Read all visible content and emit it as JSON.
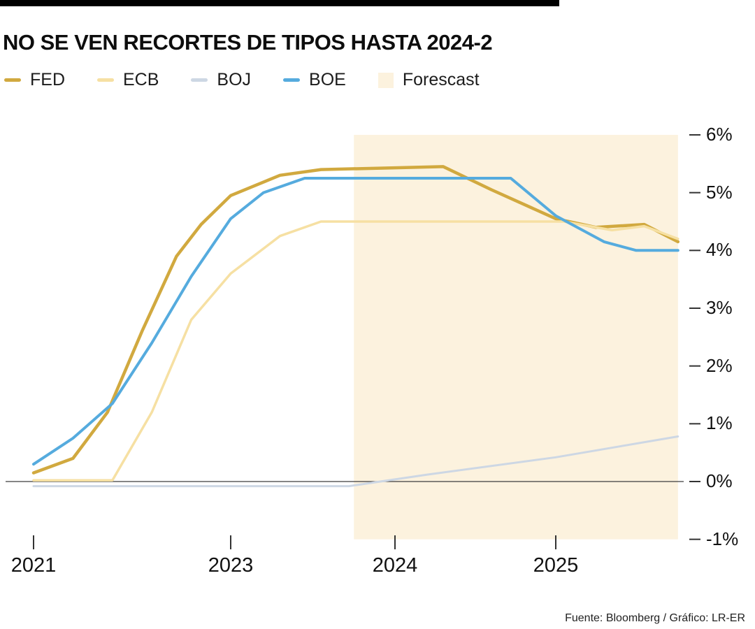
{
  "header": {
    "title": "NO SE VEN RECORTES DE TIPOS HASTA 2024-2"
  },
  "legend": [
    {
      "label": "FED",
      "color": "#d1a93f",
      "swatch": "line"
    },
    {
      "label": "ECB",
      "color": "#f6e0a3",
      "swatch": "line"
    },
    {
      "label": "BOJ",
      "color": "#cdd7e4",
      "swatch": "line"
    },
    {
      "label": "BOE",
      "color": "#55abde",
      "swatch": "line"
    },
    {
      "label": "Forescast",
      "color": "#fcf2de",
      "swatch": "box"
    }
  ],
  "footer": {
    "source": "Fuente: Bloomberg / Gráfico: LR-ER"
  },
  "chart_data": {
    "type": "line",
    "title": "NO SE VEN RECORTES DE TIPOS HASTA 2024-2",
    "xlabel": "",
    "ylabel": "%",
    "ylim": [
      -1,
      6
    ],
    "yticks": [
      6,
      5,
      4,
      3,
      2,
      1,
      0,
      -1
    ],
    "ytick_suffix": "%",
    "xticks": [
      2021,
      2023,
      2024,
      2025
    ],
    "grid": false,
    "legend_position": "top-left",
    "forecast_region": {
      "label": "Forescast",
      "x_start": 2023.75,
      "x_end": 2025.76,
      "color": "#fcf2de"
    },
    "series": [
      {
        "name": "FED",
        "color": "#d1a93f",
        "width": 4.5,
        "points": [
          [
            2021.0,
            0.15
          ],
          [
            2021.4,
            0.4
          ],
          [
            2021.75,
            1.2
          ],
          [
            2022.1,
            2.6
          ],
          [
            2022.45,
            3.9
          ],
          [
            2022.7,
            4.45
          ],
          [
            2023.0,
            4.95
          ],
          [
            2023.3,
            5.3
          ],
          [
            2023.55,
            5.4
          ],
          [
            2024.0,
            5.43
          ],
          [
            2024.3,
            5.45
          ],
          [
            2024.6,
            5.05
          ],
          [
            2025.0,
            4.55
          ],
          [
            2025.25,
            4.4
          ],
          [
            2025.55,
            4.45
          ],
          [
            2025.76,
            4.15
          ]
        ]
      },
      {
        "name": "ECB",
        "color": "#f6e0a3",
        "width": 3.5,
        "points": [
          [
            2021.0,
            0.02
          ],
          [
            2021.8,
            0.02
          ],
          [
            2022.2,
            1.2
          ],
          [
            2022.6,
            2.8
          ],
          [
            2023.0,
            3.6
          ],
          [
            2023.3,
            4.25
          ],
          [
            2023.55,
            4.5
          ],
          [
            2025.05,
            4.5
          ],
          [
            2025.35,
            4.35
          ],
          [
            2025.55,
            4.42
          ],
          [
            2025.76,
            4.2
          ]
        ]
      },
      {
        "name": "BOJ",
        "color": "#cdd7e4",
        "width": 3,
        "points": [
          [
            2021.0,
            -0.08
          ],
          [
            2023.72,
            -0.08
          ],
          [
            2024.2,
            0.12
          ],
          [
            2025.0,
            0.42
          ],
          [
            2025.76,
            0.78
          ]
        ]
      },
      {
        "name": "BOE",
        "color": "#55abde",
        "width": 4,
        "points": [
          [
            2021.0,
            0.3
          ],
          [
            2021.4,
            0.75
          ],
          [
            2021.8,
            1.35
          ],
          [
            2022.2,
            2.4
          ],
          [
            2022.6,
            3.55
          ],
          [
            2023.0,
            4.55
          ],
          [
            2023.2,
            5.0
          ],
          [
            2023.45,
            5.25
          ],
          [
            2024.72,
            5.25
          ],
          [
            2025.0,
            4.6
          ],
          [
            2025.3,
            4.15
          ],
          [
            2025.5,
            4.0
          ],
          [
            2025.76,
            4.0
          ]
        ]
      }
    ]
  }
}
